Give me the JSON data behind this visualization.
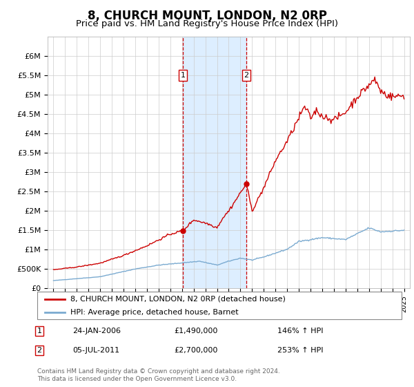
{
  "title": "8, CHURCH MOUNT, LONDON, N2 0RP",
  "subtitle": "Price paid vs. HM Land Registry's House Price Index (HPI)",
  "title_fontsize": 12,
  "subtitle_fontsize": 9.5,
  "ylabel_ticks": [
    "£0",
    "£500K",
    "£1M",
    "£1.5M",
    "£2M",
    "£2.5M",
    "£3M",
    "£3.5M",
    "£4M",
    "£4.5M",
    "£5M",
    "£5.5M",
    "£6M"
  ],
  "ylim": [
    0,
    6500000
  ],
  "sale1_date": 2006.08,
  "sale1_price": 1490000,
  "sale1_label": "1",
  "sale1_display": "24-JAN-2006",
  "sale1_pct": "146% ↑ HPI",
  "sale2_date": 2011.5,
  "sale2_price": 2700000,
  "sale2_label": "2",
  "sale2_display": "05-JUL-2011",
  "sale2_pct": "253% ↑ HPI",
  "hpi_line_color": "#7aaad0",
  "price_line_color": "#cc0000",
  "sale_marker_color": "#cc0000",
  "shade_color": "#ddeeff",
  "grid_color": "#cccccc",
  "legend_label_red": "8, CHURCH MOUNT, LONDON, N2 0RP (detached house)",
  "legend_label_blue": "HPI: Average price, detached house, Barnet",
  "footer": "Contains HM Land Registry data © Crown copyright and database right 2024.\nThis data is licensed under the Open Government Licence v3.0.",
  "xtick_years": [
    1995,
    1996,
    1997,
    1998,
    1999,
    2000,
    2001,
    2002,
    2003,
    2004,
    2005,
    2006,
    2007,
    2008,
    2009,
    2010,
    2011,
    2012,
    2013,
    2014,
    2015,
    2016,
    2017,
    2018,
    2019,
    2020,
    2021,
    2022,
    2023,
    2024,
    2025
  ]
}
